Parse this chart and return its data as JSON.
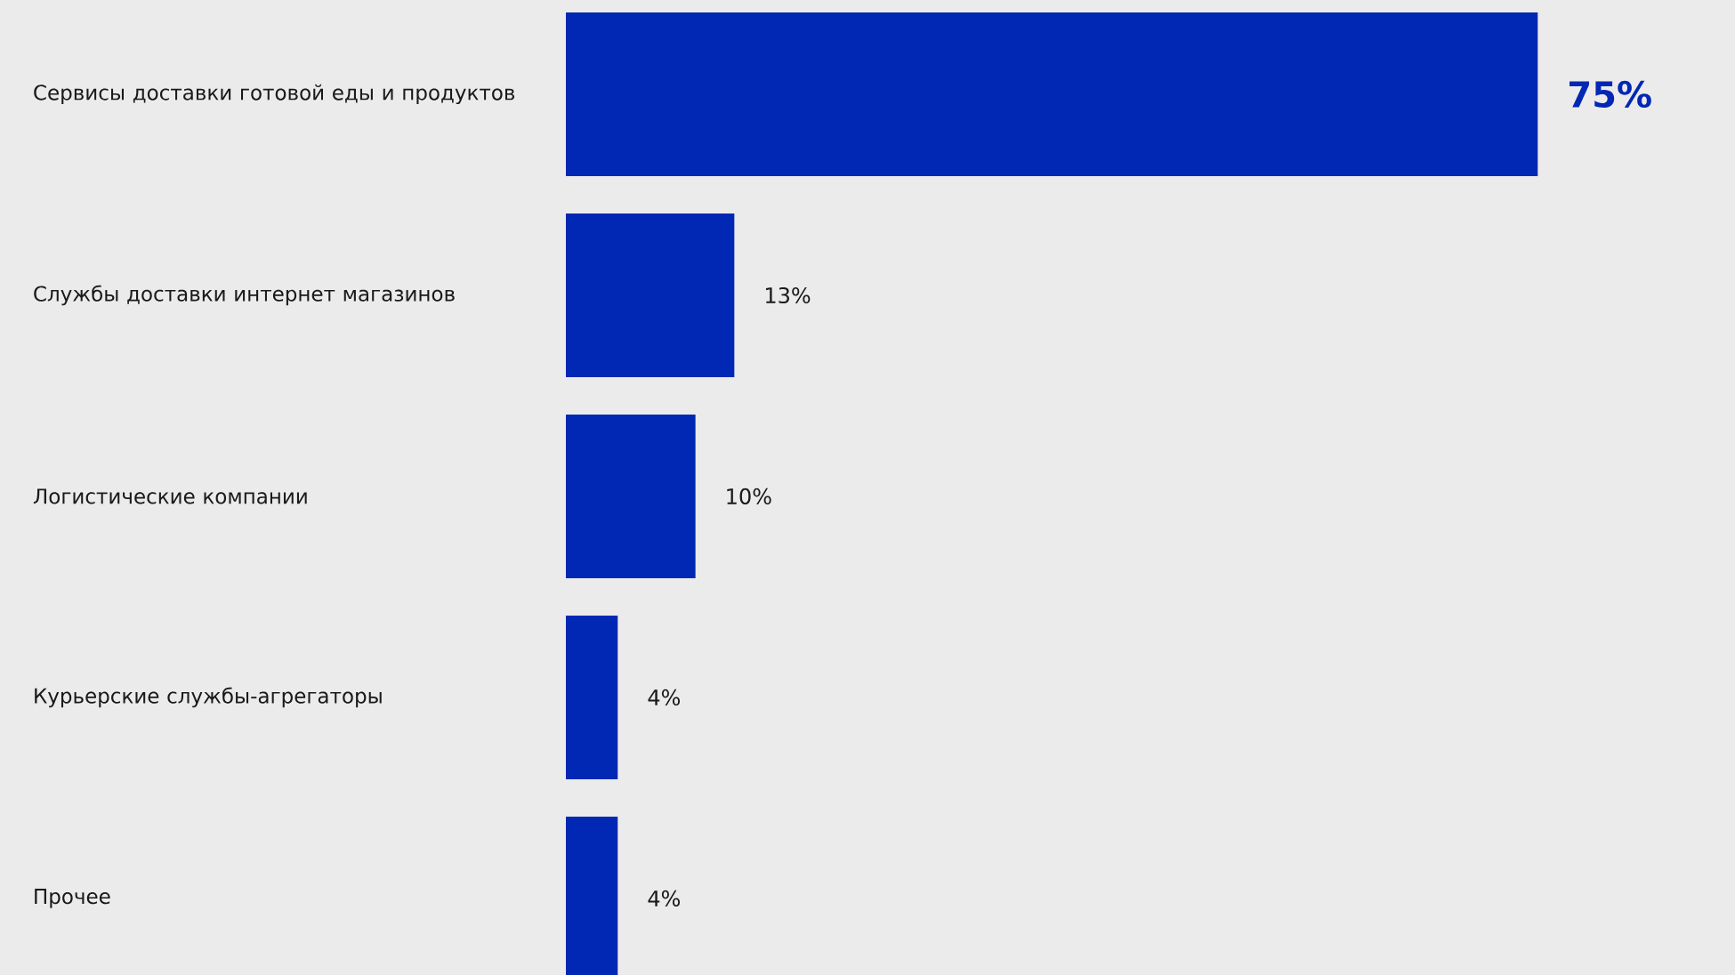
{
  "chart_data": {
    "type": "bar",
    "orientation": "horizontal",
    "categories": [
      "Сервисы доставки готовой еды и продуктов",
      "Службы доставки интернет магазинов",
      "Логистические компании",
      "Курьерские службы-агрегаторы",
      "Прочее"
    ],
    "values": [
      75,
      13,
      10,
      4,
      4
    ],
    "value_labels": [
      "75%",
      "13%",
      "10%",
      "4%",
      "4%"
    ],
    "color": "#0028b4"
  }
}
